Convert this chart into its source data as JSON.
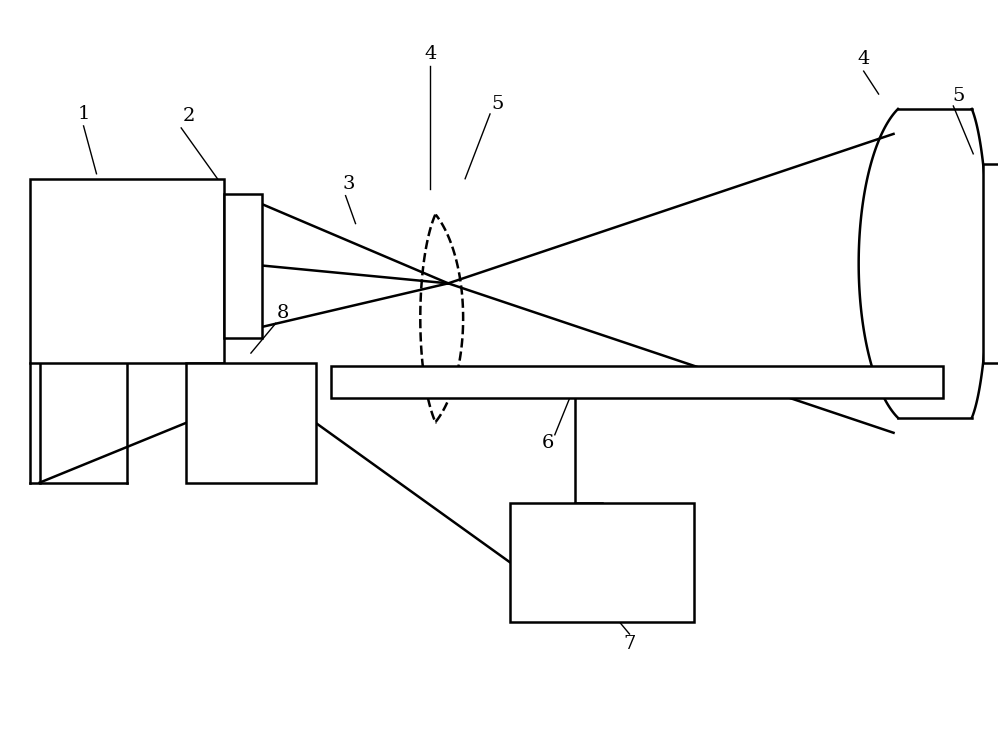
{
  "bg_color": "#ffffff",
  "lc": "#000000",
  "lw": 1.8,
  "lw_thin": 1.0,
  "fig_w": 10.0,
  "fig_h": 7.53,
  "dpi": 100
}
